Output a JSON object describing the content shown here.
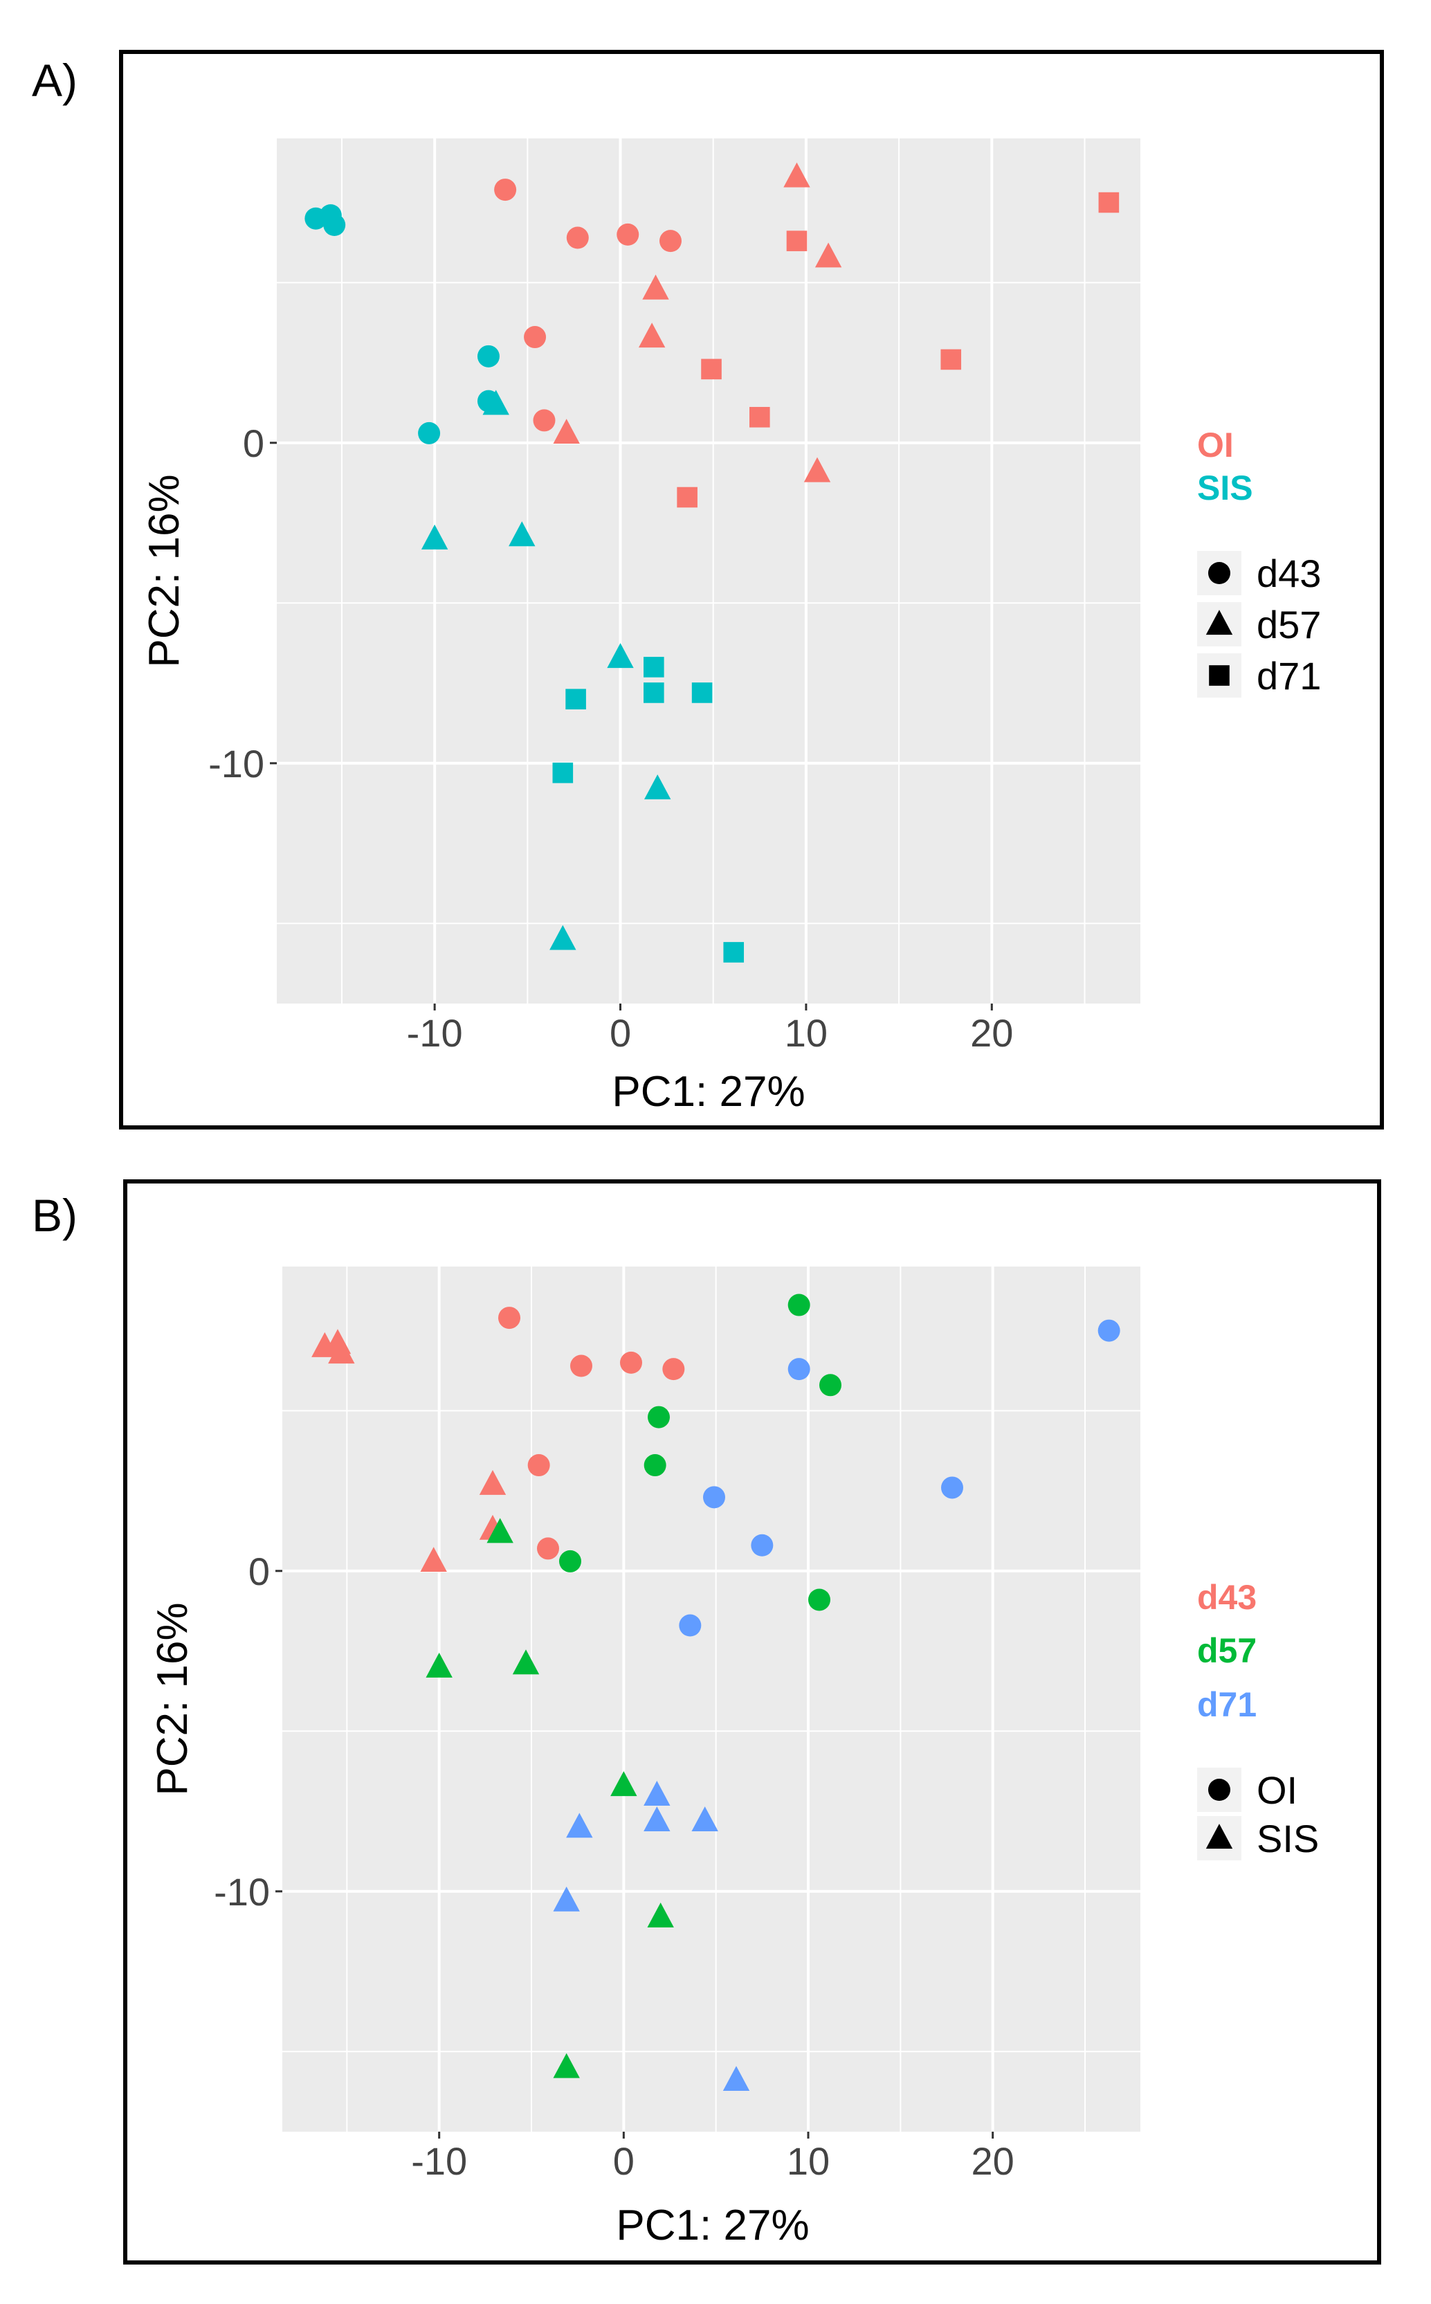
{
  "figure": {
    "panels": [
      "A)",
      "B)"
    ]
  },
  "chart_data": [
    {
      "type": "scatter",
      "panel_label": "A)",
      "title": "",
      "xlabel": "PC1: 27%",
      "ylabel": "PC2: 16%",
      "xlim": [
        -18.5,
        28
      ],
      "ylim": [
        -17.5,
        9.5
      ],
      "xticks": [
        -10,
        0,
        10,
        20
      ],
      "yticks": [
        -10,
        0
      ],
      "grid": true,
      "background": "#ebebeb",
      "legend_placement": "right",
      "color_legend": [
        {
          "label": "OI",
          "color": "#f8766d"
        },
        {
          "label": "SIS",
          "color": "#00bfc4"
        }
      ],
      "shape_legend": [
        {
          "label": "d43",
          "shape": "circle"
        },
        {
          "label": "d57",
          "shape": "triangle"
        },
        {
          "label": "d71",
          "shape": "square"
        }
      ],
      "points": [
        {
          "x": -6.2,
          "y": 7.9,
          "color": "#f8766d",
          "shape": "circle"
        },
        {
          "x": -2.3,
          "y": 6.4,
          "color": "#f8766d",
          "shape": "circle"
        },
        {
          "x": 0.4,
          "y": 6.5,
          "color": "#f8766d",
          "shape": "circle"
        },
        {
          "x": 2.7,
          "y": 6.3,
          "color": "#f8766d",
          "shape": "circle"
        },
        {
          "x": -4.6,
          "y": 3.3,
          "color": "#f8766d",
          "shape": "circle"
        },
        {
          "x": -4.1,
          "y": 0.7,
          "color": "#f8766d",
          "shape": "circle"
        },
        {
          "x": 9.5,
          "y": 8.3,
          "color": "#f8766d",
          "shape": "triangle"
        },
        {
          "x": 11.2,
          "y": 5.8,
          "color": "#f8766d",
          "shape": "triangle"
        },
        {
          "x": 1.9,
          "y": 4.8,
          "color": "#f8766d",
          "shape": "triangle"
        },
        {
          "x": 1.7,
          "y": 3.3,
          "color": "#f8766d",
          "shape": "triangle"
        },
        {
          "x": -2.9,
          "y": 0.3,
          "color": "#f8766d",
          "shape": "triangle"
        },
        {
          "x": 10.6,
          "y": -0.9,
          "color": "#f8766d",
          "shape": "triangle"
        },
        {
          "x": 26.3,
          "y": 7.5,
          "color": "#f8766d",
          "shape": "square"
        },
        {
          "x": 9.5,
          "y": 6.3,
          "color": "#f8766d",
          "shape": "square"
        },
        {
          "x": 17.8,
          "y": 2.6,
          "color": "#f8766d",
          "shape": "square"
        },
        {
          "x": 4.9,
          "y": 2.3,
          "color": "#f8766d",
          "shape": "square"
        },
        {
          "x": 7.5,
          "y": 0.8,
          "color": "#f8766d",
          "shape": "square"
        },
        {
          "x": 3.6,
          "y": -1.7,
          "color": "#f8766d",
          "shape": "square"
        },
        {
          "x": -16.4,
          "y": 7.0,
          "color": "#00bfc4",
          "shape": "circle"
        },
        {
          "x": -15.6,
          "y": 7.1,
          "color": "#00bfc4",
          "shape": "circle"
        },
        {
          "x": -15.4,
          "y": 6.8,
          "color": "#00bfc4",
          "shape": "circle"
        },
        {
          "x": -7.1,
          "y": 2.7,
          "color": "#00bfc4",
          "shape": "circle"
        },
        {
          "x": -7.1,
          "y": 1.3,
          "color": "#00bfc4",
          "shape": "circle"
        },
        {
          "x": -10.3,
          "y": 0.3,
          "color": "#00bfc4",
          "shape": "circle"
        },
        {
          "x": -6.7,
          "y": 1.2,
          "color": "#00bfc4",
          "shape": "triangle"
        },
        {
          "x": -10.0,
          "y": -3.0,
          "color": "#00bfc4",
          "shape": "triangle"
        },
        {
          "x": -5.3,
          "y": -2.9,
          "color": "#00bfc4",
          "shape": "triangle"
        },
        {
          "x": 0.0,
          "y": -6.7,
          "color": "#00bfc4",
          "shape": "triangle"
        },
        {
          "x": 2.0,
          "y": -10.8,
          "color": "#00bfc4",
          "shape": "triangle"
        },
        {
          "x": -3.1,
          "y": -15.5,
          "color": "#00bfc4",
          "shape": "triangle"
        },
        {
          "x": 1.8,
          "y": -7.0,
          "color": "#00bfc4",
          "shape": "square"
        },
        {
          "x": 1.8,
          "y": -7.8,
          "color": "#00bfc4",
          "shape": "square"
        },
        {
          "x": 4.4,
          "y": -7.8,
          "color": "#00bfc4",
          "shape": "square"
        },
        {
          "x": -2.4,
          "y": -8.0,
          "color": "#00bfc4",
          "shape": "square"
        },
        {
          "x": -3.1,
          "y": -10.3,
          "color": "#00bfc4",
          "shape": "square"
        },
        {
          "x": 6.1,
          "y": -15.9,
          "color": "#00bfc4",
          "shape": "square"
        }
      ]
    },
    {
      "type": "scatter",
      "panel_label": "B)",
      "title": "",
      "xlabel": "PC1: 27%",
      "ylabel": "PC2: 16%",
      "xlim": [
        -18.5,
        28
      ],
      "ylim": [
        -17.5,
        9.5
      ],
      "xticks": [
        -10,
        0,
        10,
        20
      ],
      "yticks": [
        -10,
        0
      ],
      "grid": true,
      "background": "#ebebeb",
      "legend_placement": "right",
      "color_legend": [
        {
          "label": "d43",
          "color": "#f8766d"
        },
        {
          "label": "d57",
          "color": "#00ba38"
        },
        {
          "label": "d71",
          "color": "#619cff"
        }
      ],
      "shape_legend": [
        {
          "label": "OI",
          "shape": "circle"
        },
        {
          "label": "SIS",
          "shape": "triangle"
        }
      ],
      "points": [
        {
          "x": -6.2,
          "y": 7.9,
          "color": "#f8766d",
          "shape": "circle"
        },
        {
          "x": -2.3,
          "y": 6.4,
          "color": "#f8766d",
          "shape": "circle"
        },
        {
          "x": 0.4,
          "y": 6.5,
          "color": "#f8766d",
          "shape": "circle"
        },
        {
          "x": 2.7,
          "y": 6.3,
          "color": "#f8766d",
          "shape": "circle"
        },
        {
          "x": -4.6,
          "y": 3.3,
          "color": "#f8766d",
          "shape": "circle"
        },
        {
          "x": -4.1,
          "y": 0.7,
          "color": "#f8766d",
          "shape": "circle"
        },
        {
          "x": -16.2,
          "y": 7.0,
          "color": "#f8766d",
          "shape": "triangle"
        },
        {
          "x": -15.5,
          "y": 7.1,
          "color": "#f8766d",
          "shape": "triangle"
        },
        {
          "x": -15.3,
          "y": 6.8,
          "color": "#f8766d",
          "shape": "triangle"
        },
        {
          "x": -7.1,
          "y": 2.7,
          "color": "#f8766d",
          "shape": "triangle"
        },
        {
          "x": -7.1,
          "y": 1.3,
          "color": "#f8766d",
          "shape": "triangle"
        },
        {
          "x": -10.3,
          "y": 0.3,
          "color": "#f8766d",
          "shape": "triangle"
        },
        {
          "x": 9.5,
          "y": 8.3,
          "color": "#00ba38",
          "shape": "circle"
        },
        {
          "x": 11.2,
          "y": 5.8,
          "color": "#00ba38",
          "shape": "circle"
        },
        {
          "x": 1.9,
          "y": 4.8,
          "color": "#00ba38",
          "shape": "circle"
        },
        {
          "x": 1.7,
          "y": 3.3,
          "color": "#00ba38",
          "shape": "circle"
        },
        {
          "x": -2.9,
          "y": 0.3,
          "color": "#00ba38",
          "shape": "circle"
        },
        {
          "x": 10.6,
          "y": -0.9,
          "color": "#00ba38",
          "shape": "circle"
        },
        {
          "x": -6.7,
          "y": 1.2,
          "color": "#00ba38",
          "shape": "triangle"
        },
        {
          "x": -10.0,
          "y": -3.0,
          "color": "#00ba38",
          "shape": "triangle"
        },
        {
          "x": -5.3,
          "y": -2.9,
          "color": "#00ba38",
          "shape": "triangle"
        },
        {
          "x": 0.0,
          "y": -6.7,
          "color": "#00ba38",
          "shape": "triangle"
        },
        {
          "x": 2.0,
          "y": -10.8,
          "color": "#00ba38",
          "shape": "triangle"
        },
        {
          "x": -3.1,
          "y": -15.5,
          "color": "#00ba38",
          "shape": "triangle"
        },
        {
          "x": 26.3,
          "y": 7.5,
          "color": "#619cff",
          "shape": "circle"
        },
        {
          "x": 9.5,
          "y": 6.3,
          "color": "#619cff",
          "shape": "circle"
        },
        {
          "x": 17.8,
          "y": 2.6,
          "color": "#619cff",
          "shape": "circle"
        },
        {
          "x": 4.9,
          "y": 2.3,
          "color": "#619cff",
          "shape": "circle"
        },
        {
          "x": 7.5,
          "y": 0.8,
          "color": "#619cff",
          "shape": "circle"
        },
        {
          "x": 3.6,
          "y": -1.7,
          "color": "#619cff",
          "shape": "circle"
        },
        {
          "x": 1.8,
          "y": -7.0,
          "color": "#619cff",
          "shape": "triangle"
        },
        {
          "x": 1.8,
          "y": -7.8,
          "color": "#619cff",
          "shape": "triangle"
        },
        {
          "x": 4.4,
          "y": -7.8,
          "color": "#619cff",
          "shape": "triangle"
        },
        {
          "x": -2.4,
          "y": -8.0,
          "color": "#619cff",
          "shape": "triangle"
        },
        {
          "x": -3.1,
          "y": -10.3,
          "color": "#619cff",
          "shape": "triangle"
        },
        {
          "x": 6.1,
          "y": -15.9,
          "color": "#619cff",
          "shape": "triangle"
        }
      ]
    }
  ]
}
